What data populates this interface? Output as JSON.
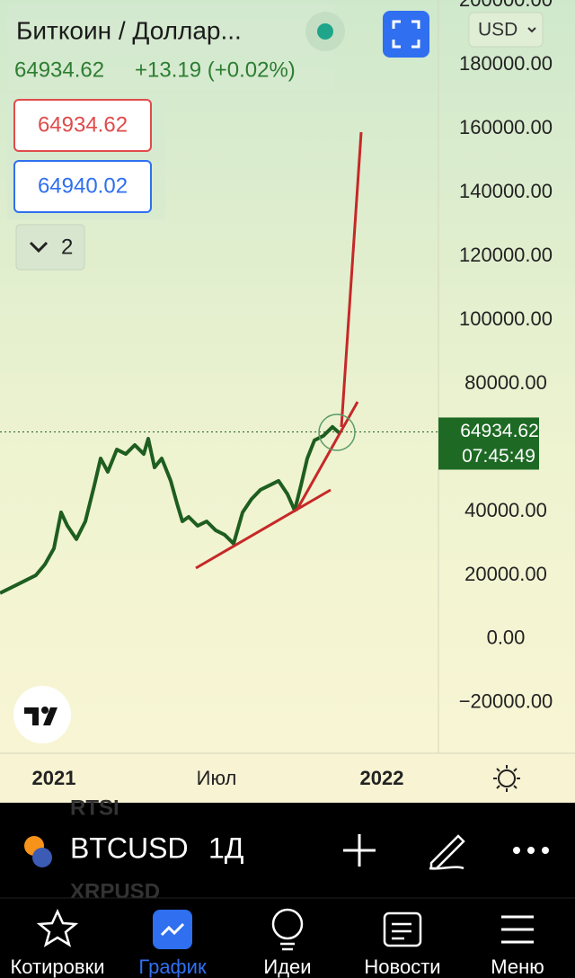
{
  "header": {
    "title": "Биткоин / Доллар...",
    "price": "64934.62",
    "change": "+13.19 (+0.02%)",
    "bid": "64934.62",
    "ask": "64940.02",
    "indicators": "2",
    "currency": "USD"
  },
  "chart_data": {
    "type": "line",
    "series": [
      {
        "name": "BTCUSD",
        "color": "#1e5e20",
        "x": [
          -60,
          -40,
          -20,
          -10,
          0,
          8,
          15,
          25,
          35,
          45,
          52,
          60,
          70,
          80,
          90,
          100,
          105,
          112,
          120,
          130,
          137,
          143,
          150,
          160,
          170,
          180,
          190,
          200,
          210,
          220,
          230,
          240,
          250,
          260,
          268,
          275,
          282,
          290,
          300,
          310,
          318
        ],
        "values": [
          14400,
          17200,
          20000,
          23400,
          28400,
          39700,
          35500,
          31300,
          36900,
          48200,
          56600,
          52400,
          59400,
          58000,
          60800,
          58000,
          62800,
          53800,
          56600,
          49600,
          42500,
          36900,
          38300,
          35500,
          36900,
          34100,
          32700,
          29900,
          39700,
          43900,
          46800,
          48200,
          49600,
          45400,
          40300,
          48200,
          56600,
          62300,
          63700,
          66500,
          64500
        ]
      }
    ],
    "current_price": 64934.62,
    "current_time": "07:45:49",
    "xlim": [
      -60,
      428
    ],
    "ylim": [
      -35800,
      200300
    ],
    "xticks": [
      {
        "value": 0,
        "label": "2021"
      },
      {
        "value": 181,
        "label": "Июл"
      },
      {
        "value": 365,
        "label": "2022"
      }
    ],
    "yticks": [
      {
        "value": 200000,
        "label": "200000.00"
      },
      {
        "value": 180000,
        "label": "180000.00"
      },
      {
        "value": 160000,
        "label": "160000.00"
      },
      {
        "value": 140000,
        "label": "140000.00"
      },
      {
        "value": 120000,
        "label": "120000.00"
      },
      {
        "value": 100000,
        "label": "100000.00"
      },
      {
        "value": 80000,
        "label": "80000.00"
      },
      {
        "value": 40000,
        "label": "40000.00"
      },
      {
        "value": 20000,
        "label": "20000.00"
      },
      {
        "value": 0,
        "label": "0.00"
      },
      {
        "value": -20000,
        "label": "−20000.00"
      }
    ]
  },
  "symbol_bar": {
    "symbol": "BTCUSD",
    "interval": "1Д",
    "behind_top": "RTSI",
    "behind_bottom": "XRPUSD"
  },
  "tabs": [
    {
      "label": "Котировки"
    },
    {
      "label": "График",
      "active": true
    },
    {
      "label": "Идеи"
    },
    {
      "label": "Новости"
    },
    {
      "label": "Меню"
    }
  ]
}
